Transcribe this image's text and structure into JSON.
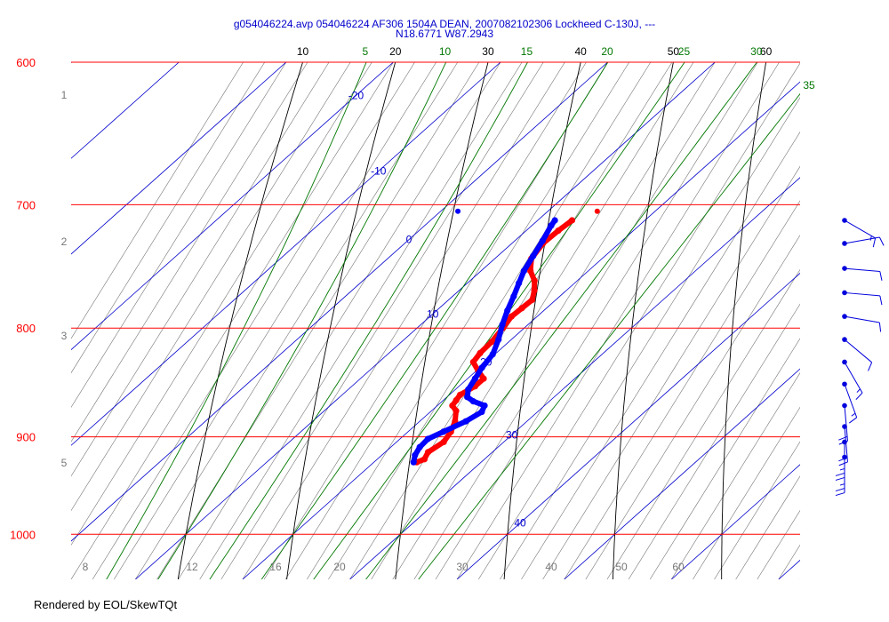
{
  "chart_data": {
    "type": "skew-t",
    "title_line1": "g054046224.avp 054046224 AF306 1504A DEAN, 2007082102306 Lockheed C-130J, ---",
    "title_line2": "N18.6771 W87.2943",
    "pressure_levels": [
      {
        "p": 600,
        "label": "600"
      },
      {
        "p": 700,
        "label": "700"
      },
      {
        "p": 800,
        "label": "800"
      },
      {
        "p": 900,
        "label": "900"
      },
      {
        "p": 1000,
        "label": "1000"
      }
    ],
    "pressure_range": [
      600,
      1050
    ],
    "temperature_range_at_base": [
      4,
      72
    ],
    "isotherms": [
      -20,
      -10,
      0,
      10,
      20,
      30,
      40
    ],
    "isotherm_labels": [
      {
        "t": -20,
        "label": "-20",
        "p": 622
      },
      {
        "t": -10,
        "label": "-10",
        "p": 675
      },
      {
        "t": 0,
        "label": "0",
        "p": 727
      },
      {
        "t": 10,
        "label": "10",
        "p": 788
      },
      {
        "t": 20,
        "label": "20",
        "p": 830
      },
      {
        "t": 30,
        "label": "30",
        "p": 898
      },
      {
        "t": 40,
        "label": "40",
        "p": 988
      }
    ],
    "dry_adiabats": [
      10,
      20,
      30,
      40,
      50,
      60
    ],
    "dry_adiabat_labels": [
      "10",
      "20",
      "30",
      "40",
      "50",
      "60"
    ],
    "moist_adiabats": [
      5,
      10,
      15,
      20,
      25,
      30,
      35
    ],
    "moist_adiabat_labels": [
      "5",
      "10",
      "15",
      "20",
      "25",
      "30",
      "35"
    ],
    "mixing_ratio_left_labels": [
      "1",
      "2",
      "3",
      "5"
    ],
    "bottom_labels": [
      "8",
      "12",
      "16",
      "20",
      "30",
      "40",
      "50",
      "60"
    ],
    "temperature_series": {
      "name": "temperature",
      "color": "#ff0000",
      "points": [
        {
          "p": 925,
          "t": 24.0
        },
        {
          "p": 922,
          "t": 24.4
        },
        {
          "p": 915,
          "t": 24.0
        },
        {
          "p": 905,
          "t": 24.4
        },
        {
          "p": 895,
          "t": 24.0
        },
        {
          "p": 885,
          "t": 23.3
        },
        {
          "p": 875,
          "t": 22.3
        },
        {
          "p": 870,
          "t": 21.4
        },
        {
          "p": 865,
          "t": 21.2
        },
        {
          "p": 860,
          "t": 21.0
        },
        {
          "p": 852,
          "t": 21.5
        },
        {
          "p": 845,
          "t": 21.5
        },
        {
          "p": 838,
          "t": 20.2
        },
        {
          "p": 830,
          "t": 18.8
        },
        {
          "p": 822,
          "t": 18.5
        },
        {
          "p": 812,
          "t": 18.4
        },
        {
          "p": 800,
          "t": 18.0
        },
        {
          "p": 790,
          "t": 17.6
        },
        {
          "p": 783,
          "t": 17.7
        },
        {
          "p": 776,
          "t": 17.8
        },
        {
          "p": 768,
          "t": 17.0
        },
        {
          "p": 760,
          "t": 16.0
        },
        {
          "p": 752,
          "t": 14.6
        },
        {
          "p": 742,
          "t": 13.4
        },
        {
          "p": 730,
          "t": 12.9
        },
        {
          "p": 720,
          "t": 13.0
        },
        {
          "p": 712,
          "t": 13.2
        }
      ]
    },
    "dewpoint_series": {
      "name": "dewpoint",
      "color": "#0000ff",
      "points": [
        {
          "p": 925,
          "t": 23.7
        },
        {
          "p": 918,
          "t": 23.1
        },
        {
          "p": 910,
          "t": 22.7
        },
        {
          "p": 902,
          "t": 22.6
        },
        {
          "p": 895,
          "t": 23.3
        },
        {
          "p": 885,
          "t": 24.3
        },
        {
          "p": 876,
          "t": 24.8
        },
        {
          "p": 870,
          "t": 24.4
        },
        {
          "p": 866,
          "t": 22.9
        },
        {
          "p": 862,
          "t": 21.9
        },
        {
          "p": 855,
          "t": 21.2
        },
        {
          "p": 845,
          "t": 20.7
        },
        {
          "p": 835,
          "t": 20.2
        },
        {
          "p": 823,
          "t": 19.8
        },
        {
          "p": 810,
          "t": 18.8
        },
        {
          "p": 797,
          "t": 17.6
        },
        {
          "p": 785,
          "t": 16.6
        },
        {
          "p": 773,
          "t": 15.7
        },
        {
          "p": 762,
          "t": 14.8
        },
        {
          "p": 752,
          "t": 14.0
        },
        {
          "p": 740,
          "t": 13.3
        },
        {
          "p": 728,
          "t": 12.6
        },
        {
          "p": 716,
          "t": 11.8
        },
        {
          "p": 712,
          "t": 11.6
        }
      ]
    },
    "top_markers": [
      {
        "name": "temperature",
        "p": 705,
        "t": 14.6,
        "color": "#ff0000"
      },
      {
        "name": "dewpoint",
        "p": 705,
        "t": 1.6,
        "color": "#0000ff"
      }
    ],
    "wind_barbs": [
      {
        "p": 712,
        "dir": 120,
        "speed": 15
      },
      {
        "p": 730,
        "dir": 80,
        "speed": 10
      },
      {
        "p": 750,
        "dir": 95,
        "speed": 10
      },
      {
        "p": 770,
        "dir": 95,
        "speed": 10
      },
      {
        "p": 790,
        "dir": 100,
        "speed": 10
      },
      {
        "p": 810,
        "dir": 130,
        "speed": 10
      },
      {
        "p": 830,
        "dir": 150,
        "speed": 15
      },
      {
        "p": 850,
        "dir": 160,
        "speed": 15
      },
      {
        "p": 870,
        "dir": 175,
        "speed": 20
      },
      {
        "p": 890,
        "dir": 175,
        "speed": 20
      },
      {
        "p": 905,
        "dir": 180,
        "speed": 25
      },
      {
        "p": 920,
        "dir": 180,
        "speed": 25
      }
    ],
    "colors": {
      "isobar": "#ff0000",
      "isotherm": "#0000cc",
      "dry_adiabat": "#000000",
      "moist_adiabat": "#007700",
      "mixing_ratio": "#777777",
      "wind": "#0000dd"
    }
  },
  "footer": "Rendered by EOL/SkewTQt"
}
